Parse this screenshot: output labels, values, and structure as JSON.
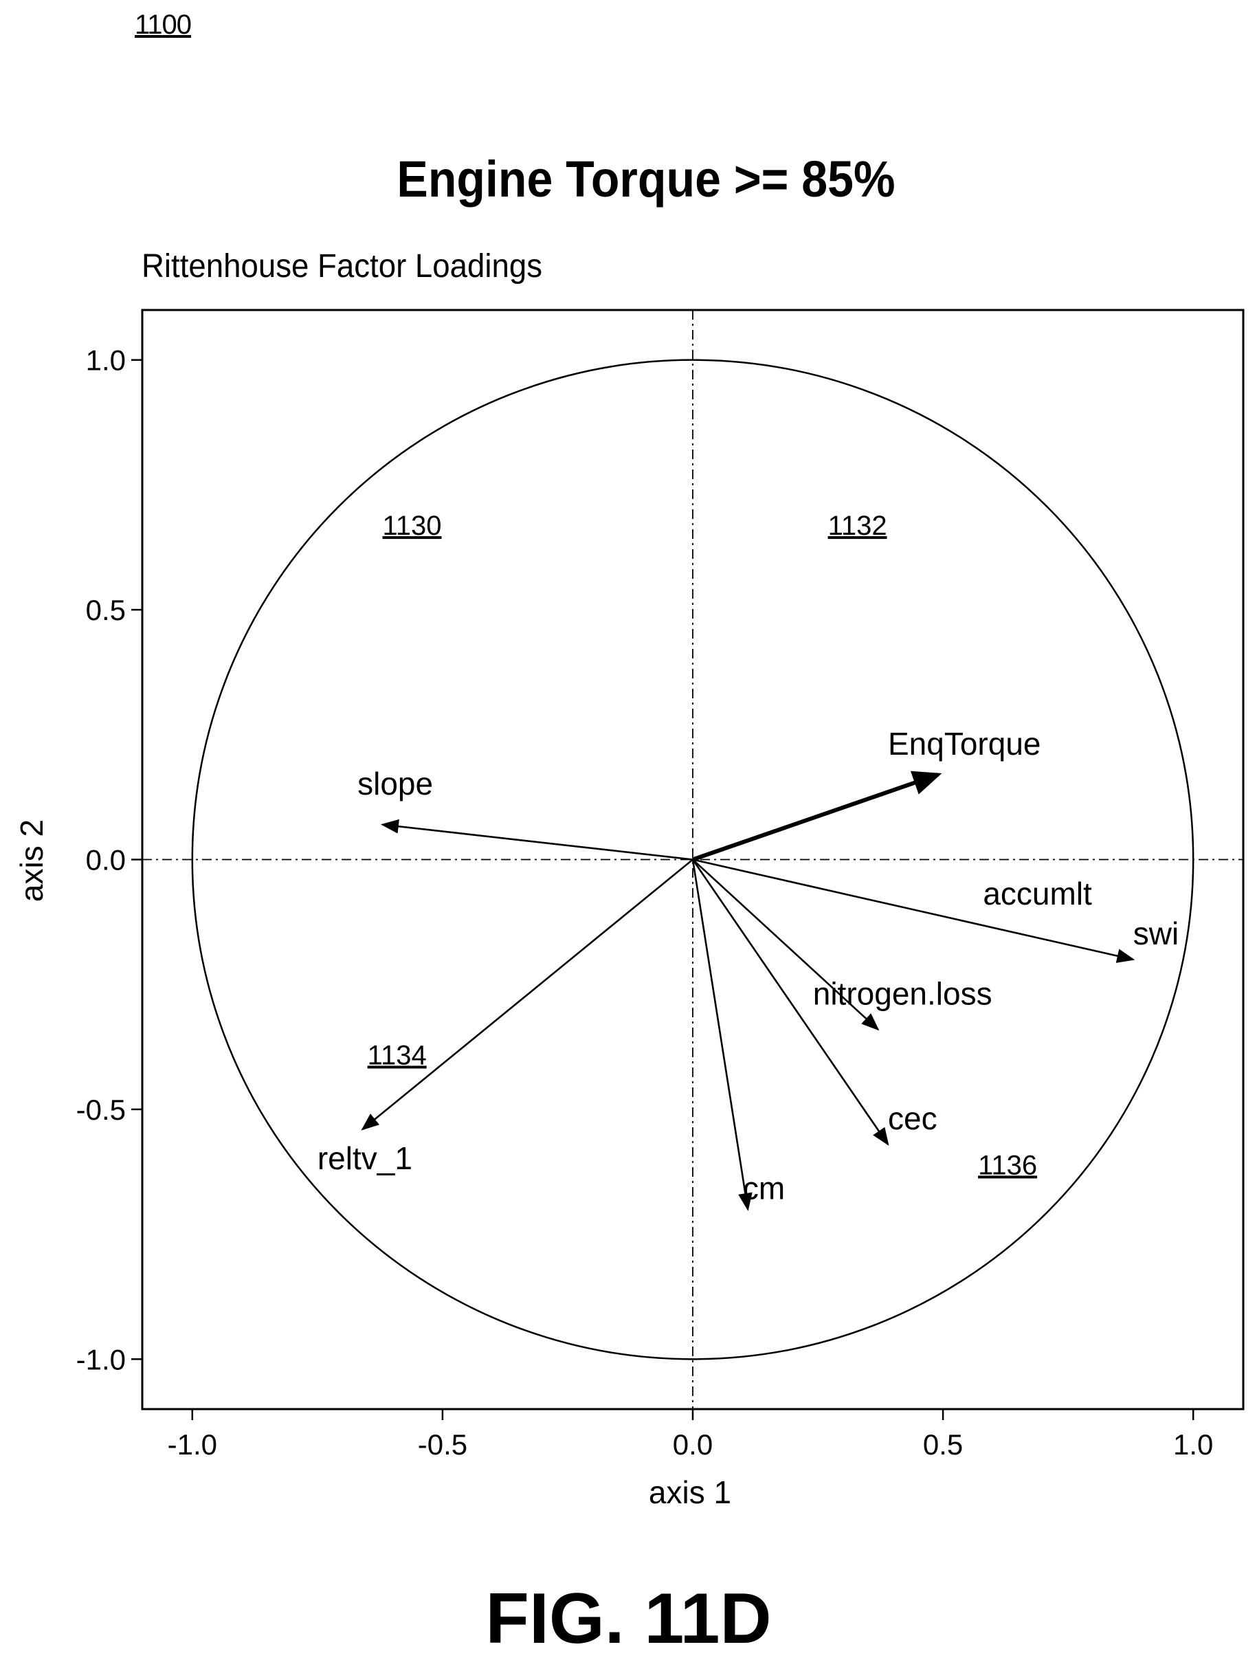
{
  "figure_ref": "1100",
  "figure_label": "FIG. 11D",
  "chart_data": {
    "type": "scatter",
    "subtype": "biplot-loadings-circle",
    "title": "Engine Torque >= 85%",
    "subtitle": "Rittenhouse Factor Loadings",
    "xlabel": "axis 1",
    "ylabel": "axis 2",
    "xlim": [
      -1.1,
      1.1
    ],
    "ylim": [
      -1.1,
      1.1
    ],
    "x_ticks": [
      "-1.0",
      "-0.5",
      "0.0",
      "0.5",
      "1.0"
    ],
    "y_ticks": [
      "1.0",
      "0.5",
      "0.0",
      "-0.5",
      "-1.0"
    ],
    "grid": false,
    "reference_lines": [
      "x=0",
      "y=0"
    ],
    "circle_radius": 1.0,
    "vectors": [
      {
        "name": "slope",
        "x": -0.62,
        "y": 0.07,
        "label_x": -0.67,
        "label_y": 0.13
      },
      {
        "name": "EnqTorque",
        "x": 0.49,
        "y": 0.17,
        "label_x": 0.39,
        "label_y": 0.21,
        "bold": true
      },
      {
        "name": "accumlt",
        "x": 0.88,
        "y": -0.2,
        "label_x": 0.58,
        "label_y": -0.09
      },
      {
        "name": "swi",
        "x": 0.88,
        "y": -0.2,
        "label_x": 0.88,
        "label_y": -0.17
      },
      {
        "name": "nitrogen.loss",
        "x": 0.37,
        "y": -0.34,
        "label_x": 0.24,
        "label_y": -0.29
      },
      {
        "name": "cec",
        "x": 0.39,
        "y": -0.57,
        "label_x": 0.39,
        "label_y": -0.54
      },
      {
        "name": "cm",
        "x": 0.11,
        "y": -0.7,
        "label_x": 0.1,
        "label_y": -0.68
      },
      {
        "name": "reltv_1",
        "x": -0.66,
        "y": -0.54,
        "label_x": -0.75,
        "label_y": -0.62
      }
    ],
    "reference_numerals": [
      {
        "text": "1130",
        "x": -0.62,
        "y": 0.65
      },
      {
        "text": "1132",
        "x": 0.27,
        "y": 0.65
      },
      {
        "text": "1134",
        "x": -0.65,
        "y": -0.41
      },
      {
        "text": "1136",
        "x": 0.57,
        "y": -0.63
      }
    ]
  }
}
